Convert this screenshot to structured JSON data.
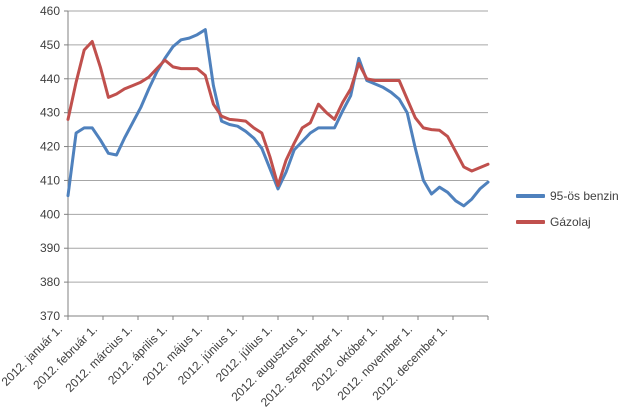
{
  "chart_data": {
    "type": "line",
    "title": "",
    "xlabel": "",
    "ylabel": "",
    "ylim": [
      370,
      460
    ],
    "y_ticks": [
      370,
      380,
      390,
      400,
      410,
      420,
      430,
      440,
      450,
      460
    ],
    "x_tick_labels": [
      "2012. január 1.",
      "2012. február 1.",
      "2012. március 1.",
      "2012. április 1.",
      "2012. május 1.",
      "2012. június 1.",
      "2012. július 1.",
      "2012. augusztus 1.",
      "2012. szeptember 1.",
      "2012. október 1.",
      "2012. november 1.",
      "2012. december 1."
    ],
    "grid": "horizontal-only",
    "legend_position": "right-middle",
    "colors": {
      "grid": "#a6a6a6",
      "axis": "#808080",
      "text": "#3f3f3f"
    },
    "series": [
      {
        "name": "95-ös benzin",
        "color": "#4F81BD",
        "values": [
          405.5,
          424,
          425.5,
          425.5,
          422,
          418,
          417.5,
          422.5,
          427,
          431.5,
          437,
          442,
          446,
          449.5,
          451.5,
          452,
          453,
          454.5,
          438,
          427.5,
          426.5,
          426,
          424.5,
          422.5,
          419.5,
          413.5,
          407.5,
          412.5,
          419,
          421.5,
          424,
          425.5,
          425.5,
          425.5,
          430.5,
          435,
          446,
          439.5,
          438.5,
          437.5,
          436,
          434,
          430,
          419.5,
          410,
          406,
          408,
          406.5,
          404,
          402.5,
          404.5,
          407.5,
          409.5
        ]
      },
      {
        "name": "Gázolaj",
        "color": "#C0504D",
        "values": [
          428,
          439,
          448.5,
          451,
          443.5,
          434.5,
          435.5,
          437,
          438,
          439,
          440.5,
          443,
          445.5,
          443.5,
          443,
          443,
          443,
          441,
          432.5,
          429,
          428,
          427.8,
          427.5,
          425.5,
          424,
          417,
          408.5,
          416,
          421,
          425.5,
          427,
          432.5,
          430,
          428,
          433,
          437,
          444.5,
          440,
          439.5,
          439.5,
          439.5,
          439.5,
          434,
          428.5,
          425.5,
          425,
          424.8,
          423,
          418.5,
          414,
          412.8,
          413.8,
          414.8
        ]
      }
    ]
  }
}
